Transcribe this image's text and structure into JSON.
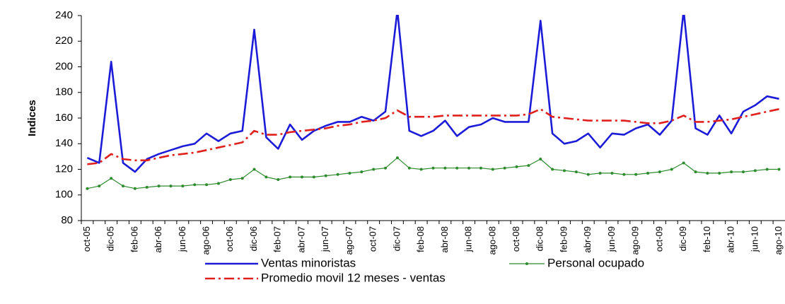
{
  "chart_data": {
    "type": "line",
    "y_label": "Indices",
    "categories": [
      "oct-05",
      null,
      "dic-05",
      null,
      "feb-06",
      null,
      "abr-06",
      null,
      "jun-06",
      null,
      "ago-06",
      null,
      "oct-06",
      null,
      "dic-06",
      null,
      "feb-07",
      null,
      "abr-07",
      null,
      "jun-07",
      null,
      "ago-07",
      null,
      "oct-07",
      null,
      "dic-07",
      null,
      "feb-08",
      null,
      "abr-08",
      null,
      "jun-08",
      null,
      "ago-08",
      null,
      "oct-08",
      null,
      "dic-08",
      null,
      "feb-09",
      null,
      "abr-09",
      null,
      "jun-09",
      null,
      "ago-09",
      null,
      "oct-09",
      null,
      "dic-09",
      null,
      "feb-10",
      null,
      "abr-10",
      null,
      "jun-10",
      null,
      "ago-10"
    ],
    "series": [
      {
        "name": "Ventas minoristas",
        "color": "#1c1cd8",
        "style": "solid",
        "values": [
          129,
          125,
          204,
          125,
          118,
          128,
          132,
          135,
          138,
          140,
          148,
          142,
          148,
          150,
          229,
          145,
          136,
          155,
          143,
          150,
          154,
          157,
          157,
          161,
          158,
          165,
          244,
          150,
          146,
          150,
          158,
          146,
          153,
          155,
          160,
          157,
          157,
          157,
          236,
          148,
          140,
          142,
          148,
          137,
          148,
          147,
          152,
          155,
          147,
          158,
          244,
          152,
          147,
          162,
          148,
          165,
          170,
          177,
          175
        ]
      },
      {
        "name": "Personal ocupado",
        "color": "#2e8b2e",
        "style": "marker",
        "values": [
          105,
          107,
          113,
          107,
          105,
          106,
          107,
          107,
          107,
          108,
          108,
          109,
          112,
          113,
          120,
          114,
          112,
          114,
          114,
          114,
          115,
          116,
          117,
          118,
          120,
          121,
          129,
          121,
          120,
          121,
          121,
          121,
          121,
          121,
          120,
          121,
          122,
          123,
          128,
          120,
          119,
          118,
          116,
          117,
          117,
          116,
          116,
          117,
          118,
          120,
          125,
          118,
          117,
          117,
          118,
          118,
          119,
          120,
          120
        ]
      },
      {
        "name": "Promedio movil 12 meses - ventas",
        "color": "#e0201c",
        "style": "dashdot",
        "values": [
          124,
          125,
          132,
          128,
          127,
          127,
          129,
          131,
          132,
          133,
          135,
          137,
          139,
          141,
          150,
          147,
          147,
          149,
          150,
          151,
          152,
          154,
          155,
          157,
          158,
          160,
          166,
          161,
          161,
          161,
          162,
          162,
          162,
          162,
          162,
          162,
          162,
          163,
          167,
          161,
          160,
          159,
          158,
          158,
          158,
          158,
          157,
          156,
          156,
          158,
          162,
          157,
          157,
          158,
          159,
          161,
          163,
          165,
          167
        ]
      }
    ],
    "ylim": [
      80,
      240
    ],
    "yticks": [
      80,
      100,
      120,
      140,
      160,
      180,
      200,
      220,
      240
    ],
    "legend": "bottom",
    "grid": false
  }
}
